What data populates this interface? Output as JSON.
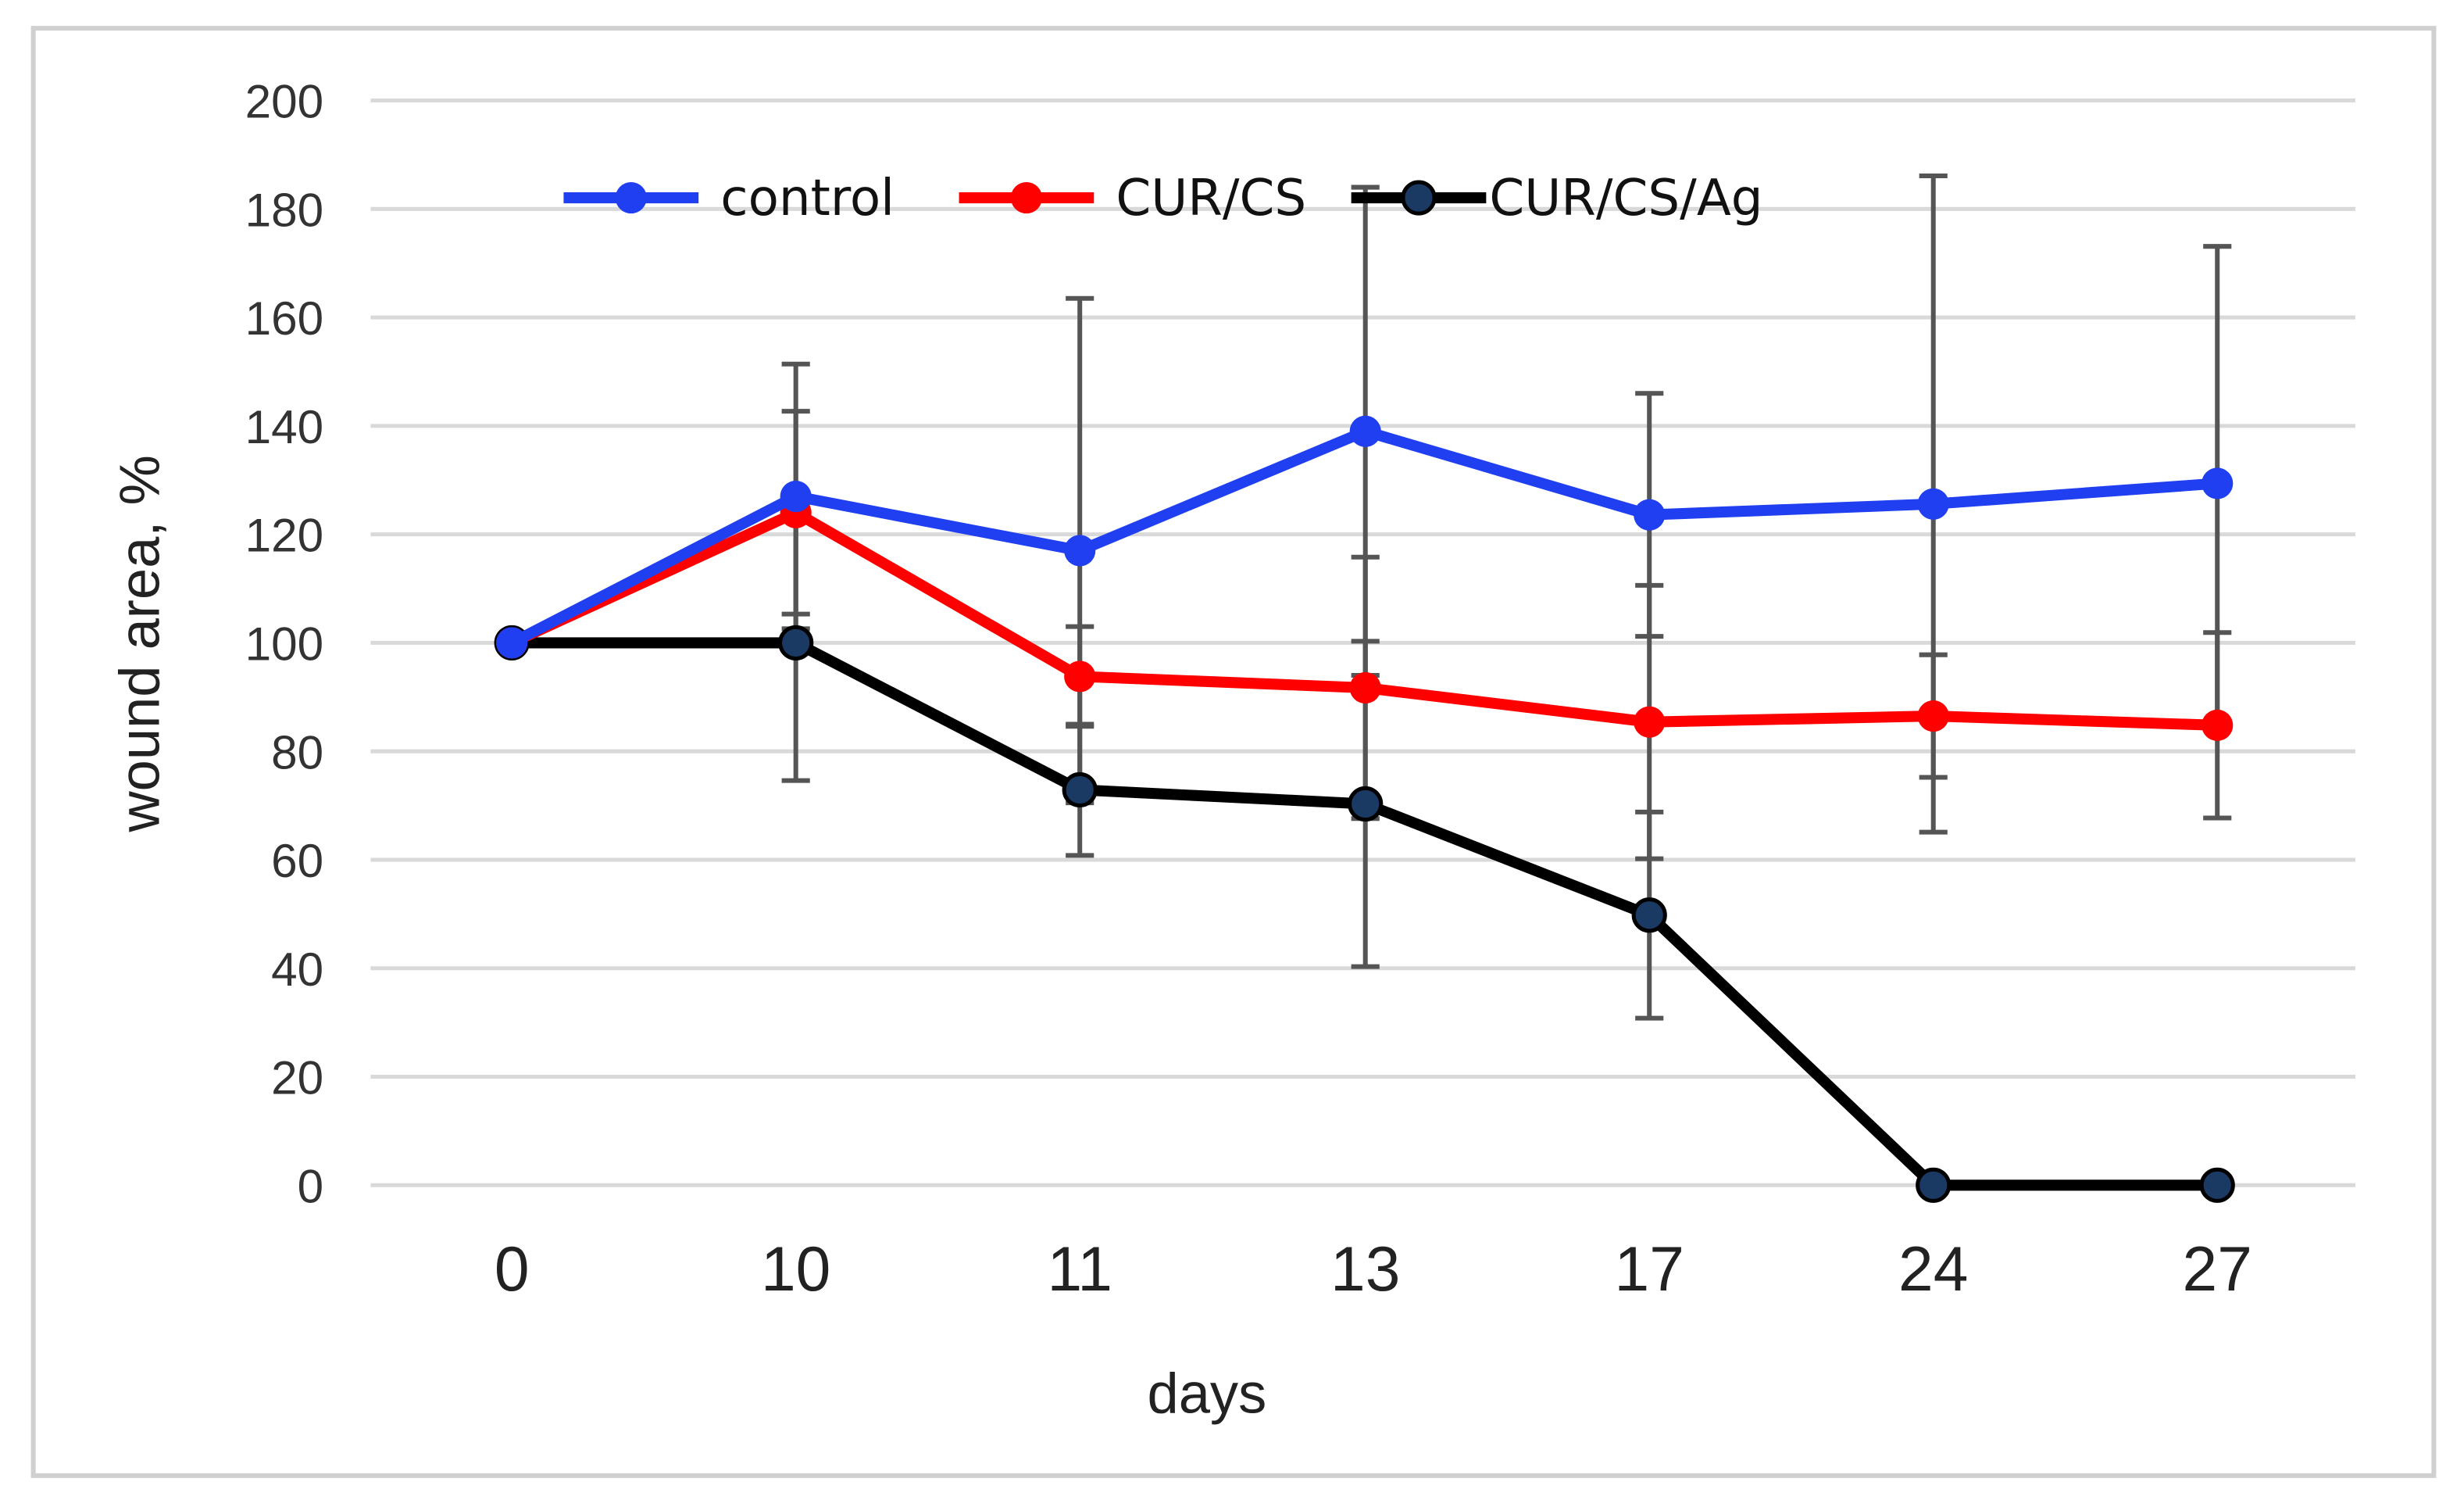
{
  "chart_data": {
    "type": "line",
    "title": "",
    "xlabel": "days",
    "ylabel": "wound area, %",
    "categories": [
      "0",
      "10",
      "11",
      "13",
      "17",
      "24",
      "27"
    ],
    "ylim": [
      0,
      200
    ],
    "yticks": [
      0,
      20,
      40,
      60,
      80,
      100,
      120,
      140,
      160,
      180,
      200
    ],
    "grid": true,
    "legend_position": "top",
    "series": [
      {
        "name": "control",
        "color": "#1f3ff0",
        "values": [
          100,
          127,
          117,
          139,
          123.6,
          125.6,
          129.4
        ],
        "errors": [
          0,
          24.4,
          46.5,
          45,
          22.4,
          60.5,
          43.7
        ]
      },
      {
        "name": "CUR/CS",
        "color": "#ff0000",
        "values": [
          100,
          124,
          93.8,
          91.7,
          85.4,
          86.5,
          84.8
        ],
        "errors": [
          0,
          18.7,
          9.2,
          24.1,
          25.2,
          11.3,
          17.1
        ]
      },
      {
        "name": "CUR/CS/Ag",
        "color": "#000000",
        "marker_color": "#1b3a63",
        "values": [
          100,
          100,
          72.9,
          70.3,
          49.8,
          0,
          0
        ],
        "errors": [
          0,
          25.4,
          12.1,
          30,
          19,
          0,
          0
        ]
      }
    ]
  }
}
